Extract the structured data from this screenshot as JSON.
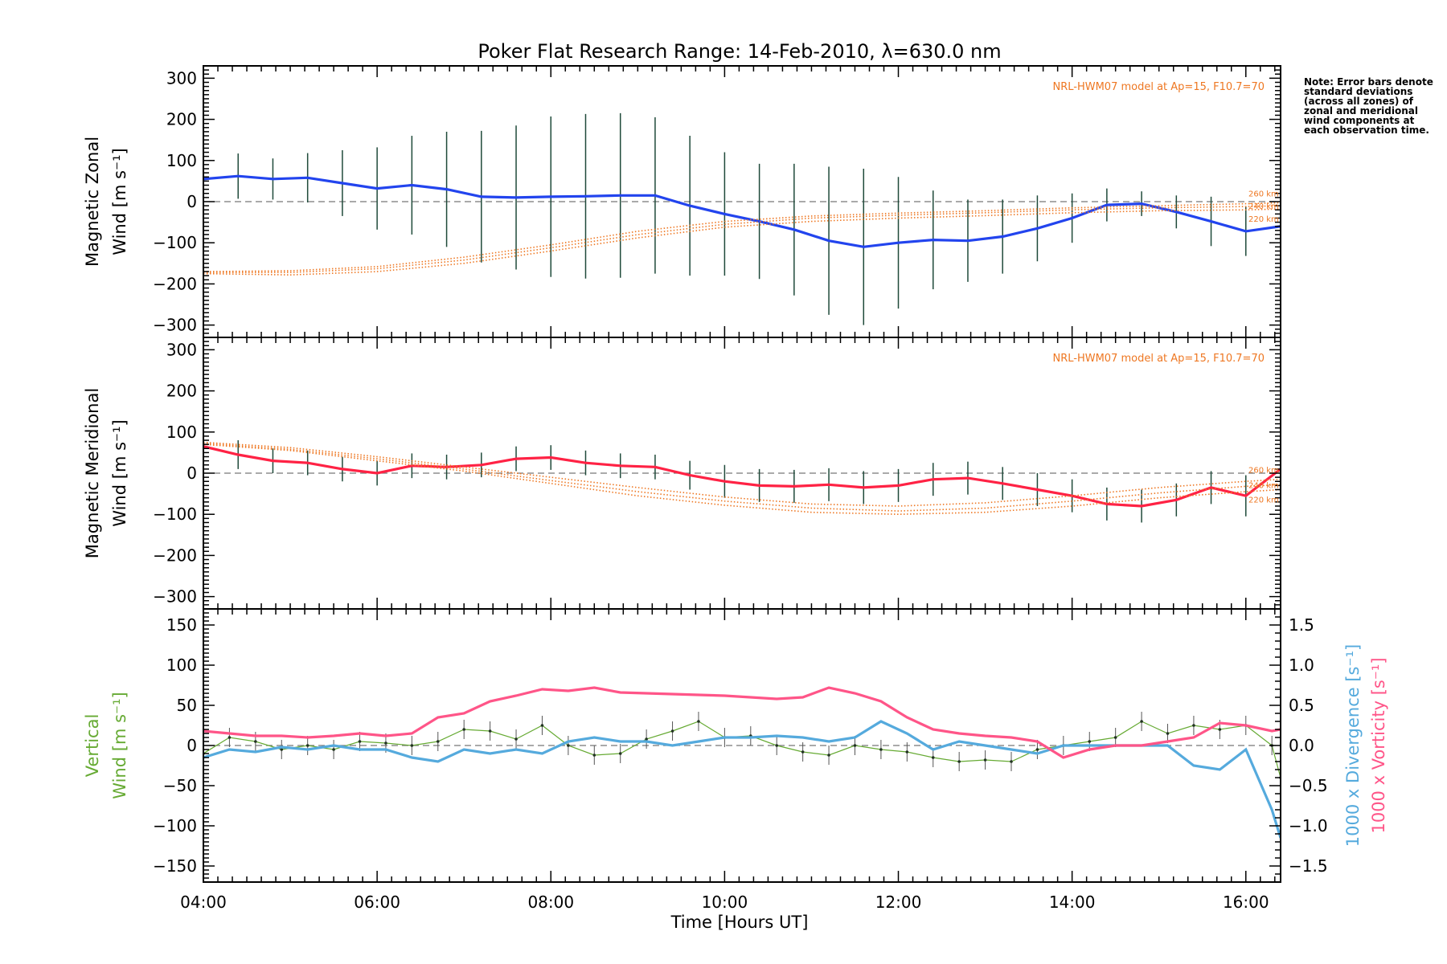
{
  "chart_data": {
    "type": "line",
    "title": "Poker Flat Research Range: 14-Feb-2010, λ=630.0 nm",
    "xlabel": "Time [Hours UT]",
    "x_ticks": [
      "04:00",
      "06:00",
      "08:00",
      "10:00",
      "12:00",
      "14:00",
      "16:00"
    ],
    "xlim_hours": [
      4.0,
      16.4
    ],
    "note": "Note: Error bars denote standard deviations (across all zones) of zonal and meridional wind components at each observation time.",
    "panels": [
      {
        "name": "zonal",
        "ylabel_line1": "Magnetic Zonal",
        "ylabel_line2": "Wind [m s⁻¹]",
        "ylim": [
          -330,
          330
        ],
        "y_ticks": [
          300,
          200,
          100,
          0,
          -100,
          -200,
          -300
        ],
        "model_label": "NRL-HWM07 model at Ap=15, F10.7=70",
        "altitude_labels": [
          "260 km",
          "240 km",
          "220 km"
        ],
        "series": [
          {
            "name": "Zonal wind",
            "color": "#2244ee",
            "x": [
              4.0,
              4.4,
              4.8,
              5.2,
              5.6,
              6.0,
              6.4,
              6.8,
              7.2,
              7.6,
              8.0,
              8.4,
              8.8,
              9.2,
              9.6,
              10.0,
              10.4,
              10.8,
              11.2,
              11.6,
              12.0,
              12.4,
              12.8,
              13.2,
              13.6,
              14.0,
              14.4,
              14.8,
              15.2,
              15.6,
              16.0,
              16.4
            ],
            "y": [
              55,
              62,
              55,
              58,
              45,
              32,
              40,
              30,
              12,
              10,
              12,
              13,
              15,
              15,
              -10,
              -30,
              -48,
              -68,
              -95,
              -110,
              -100,
              -93,
              -95,
              -85,
              -65,
              -40,
              -8,
              -5,
              -25,
              -48,
              -72,
              -60
            ],
            "err": [
              60,
              55,
              50,
              60,
              80,
              100,
              120,
              140,
              160,
              175,
              195,
              200,
              200,
              190,
              170,
              150,
              140,
              160,
              180,
              190,
              160,
              120,
              100,
              90,
              80,
              60,
              40,
              30,
              40,
              60,
              60,
              60
            ]
          },
          {
            "name": "HWM07 260 km",
            "color": "#ee7722",
            "x": [
              4.0,
              5.0,
              6.0,
              7.0,
              8.0,
              9.0,
              10.0,
              11.0,
              12.0,
              13.0,
              14.0,
              15.0,
              16.0,
              16.4
            ],
            "y": [
              -170,
              -168,
              -158,
              -135,
              -105,
              -72,
              -48,
              -35,
              -28,
              -22,
              -15,
              -10,
              -5,
              -3
            ]
          },
          {
            "name": "HWM07 240 km",
            "color": "#ee7722",
            "x": [
              4.0,
              5.0,
              6.0,
              7.0,
              8.0,
              9.0,
              10.0,
              11.0,
              12.0,
              13.0,
              14.0,
              15.0,
              16.0,
              16.4
            ],
            "y": [
              -172,
              -172,
              -163,
              -142,
              -112,
              -80,
              -55,
              -40,
              -33,
              -27,
              -20,
              -15,
              -12,
              -10
            ]
          },
          {
            "name": "HWM07 220 km",
            "color": "#ee7722",
            "x": [
              4.0,
              5.0,
              6.0,
              7.0,
              8.0,
              9.0,
              10.0,
              11.0,
              12.0,
              13.0,
              14.0,
              15.0,
              16.0,
              16.4
            ],
            "y": [
              -175,
              -178,
              -170,
              -150,
              -120,
              -88,
              -62,
              -48,
              -40,
              -34,
              -27,
              -22,
              -20,
              -18
            ]
          }
        ]
      },
      {
        "name": "meridional",
        "ylabel_line1": "Magnetic Meridional",
        "ylabel_line2": "Wind [m s⁻¹]",
        "ylim": [
          -330,
          330
        ],
        "y_ticks": [
          300,
          200,
          100,
          0,
          -100,
          -200,
          -300
        ],
        "model_label": "NRL-HWM07 model at Ap=15, F10.7=70",
        "altitude_labels": [
          "260 km",
          "240 km",
          "220 km"
        ],
        "series": [
          {
            "name": "Meridional wind",
            "color": "#ff2244",
            "x": [
              4.0,
              4.4,
              4.8,
              5.2,
              5.6,
              6.0,
              6.4,
              6.8,
              7.2,
              7.6,
              8.0,
              8.4,
              8.8,
              9.2,
              9.6,
              10.0,
              10.4,
              10.8,
              11.2,
              11.6,
              12.0,
              12.4,
              12.8,
              13.2,
              13.6,
              14.0,
              14.4,
              14.8,
              15.2,
              15.6,
              16.0,
              16.4
            ],
            "y": [
              65,
              45,
              30,
              25,
              10,
              0,
              18,
              15,
              20,
              35,
              38,
              25,
              18,
              15,
              -5,
              -20,
              -30,
              -32,
              -28,
              -35,
              -30,
              -15,
              -12,
              -25,
              -40,
              -55,
              -75,
              -80,
              -65,
              -35,
              -55,
              10
            ],
            "err": [
              40,
              35,
              30,
              30,
              30,
              30,
              30,
              30,
              30,
              30,
              30,
              30,
              30,
              30,
              35,
              40,
              40,
              40,
              40,
              40,
              40,
              40,
              40,
              40,
              40,
              40,
              40,
              40,
              40,
              40,
              50,
              60
            ]
          },
          {
            "name": "HWM07 260 km",
            "color": "#ee7722",
            "x": [
              4.0,
              5.0,
              6.0,
              7.0,
              8.0,
              9.0,
              10.0,
              11.0,
              12.0,
              13.0,
              14.0,
              15.0,
              16.0,
              16.4
            ],
            "y": [
              75,
              62,
              40,
              15,
              -10,
              -35,
              -58,
              -75,
              -80,
              -72,
              -55,
              -35,
              -20,
              -15
            ]
          },
          {
            "name": "HWM07 240 km",
            "color": "#ee7722",
            "x": [
              4.0,
              5.0,
              6.0,
              7.0,
              8.0,
              9.0,
              10.0,
              11.0,
              12.0,
              13.0,
              14.0,
              15.0,
              16.0,
              16.4
            ],
            "y": [
              72,
              58,
              35,
              10,
              -18,
              -45,
              -68,
              -85,
              -92,
              -85,
              -68,
              -48,
              -32,
              -28
            ]
          },
          {
            "name": "HWM07 220 km",
            "color": "#ee7722",
            "x": [
              4.0,
              5.0,
              6.0,
              7.0,
              8.0,
              9.0,
              10.0,
              11.0,
              12.0,
              13.0,
              14.0,
              15.0,
              16.0,
              16.4
            ],
            "y": [
              70,
              55,
              30,
              5,
              -25,
              -55,
              -78,
              -95,
              -100,
              -95,
              -80,
              -60,
              -45,
              -40
            ]
          }
        ]
      },
      {
        "name": "vertical",
        "ylabel_line1": "Vertical",
        "ylabel_line2": "Wind [m s⁻¹]",
        "ylim": [
          -170,
          170
        ],
        "y_ticks": [
          150,
          100,
          50,
          0,
          -50,
          -100,
          -150
        ],
        "right_axis": {
          "ylim": [
            -1.7,
            1.7
          ],
          "y_ticks": [
            1.5,
            1.0,
            0.5,
            0.0,
            -0.5,
            -1.0,
            -1.5
          ],
          "label_divergence": "1000 x Divergence [s⁻¹]",
          "label_vorticity": "1000 x Vorticity [s⁻¹]"
        },
        "series": [
          {
            "name": "Vertical wind",
            "color": "#66aa33",
            "axis": "left",
            "x": [
              4.0,
              4.3,
              4.6,
              4.9,
              5.2,
              5.5,
              5.8,
              6.1,
              6.4,
              6.7,
              7.0,
              7.3,
              7.6,
              7.9,
              8.2,
              8.5,
              8.8,
              9.1,
              9.4,
              9.7,
              10.0,
              10.3,
              10.6,
              10.9,
              11.2,
              11.5,
              11.8,
              12.1,
              12.4,
              12.7,
              13.0,
              13.3,
              13.6,
              13.9,
              14.2,
              14.5,
              14.8,
              15.1,
              15.4,
              15.7,
              16.0,
              16.3,
              16.4
            ],
            "y": [
              -10,
              10,
              5,
              -5,
              0,
              -5,
              5,
              3,
              0,
              5,
              20,
              18,
              8,
              25,
              0,
              -12,
              -10,
              8,
              18,
              30,
              10,
              12,
              0,
              -8,
              -12,
              0,
              -5,
              -8,
              -15,
              -20,
              -18,
              -20,
              -5,
              0,
              5,
              10,
              30,
              15,
              25,
              20,
              25,
              0,
              -40
            ]
          },
          {
            "name": "Divergence",
            "color": "#55aadd",
            "axis": "right",
            "x": [
              4.0,
              4.3,
              4.6,
              4.9,
              5.2,
              5.5,
              5.8,
              6.1,
              6.4,
              6.7,
              7.0,
              7.3,
              7.6,
              7.9,
              8.2,
              8.5,
              8.8,
              9.1,
              9.4,
              9.7,
              10.0,
              10.3,
              10.6,
              10.9,
              11.2,
              11.5,
              11.8,
              12.1,
              12.4,
              12.7,
              13.0,
              13.3,
              13.6,
              13.9,
              14.2,
              14.5,
              14.8,
              15.1,
              15.4,
              15.7,
              16.0,
              16.3,
              16.4
            ],
            "y": [
              -0.15,
              -0.05,
              -0.08,
              -0.02,
              -0.05,
              0.0,
              -0.05,
              -0.05,
              -0.15,
              -0.2,
              -0.05,
              -0.1,
              -0.05,
              -0.1,
              0.05,
              0.1,
              0.05,
              0.05,
              0.0,
              0.05,
              0.1,
              0.1,
              0.12,
              0.1,
              0.05,
              0.1,
              0.3,
              0.15,
              -0.05,
              0.05,
              0.0,
              -0.05,
              -0.1,
              0.0,
              0.0,
              0.0,
              0.0,
              0.0,
              -0.25,
              -0.3,
              -0.05,
              -0.8,
              -1.15
            ]
          },
          {
            "name": "Vorticity",
            "color": "#ff5588",
            "axis": "right",
            "x": [
              4.0,
              4.3,
              4.6,
              4.9,
              5.2,
              5.5,
              5.8,
              6.1,
              6.4,
              6.7,
              7.0,
              7.3,
              7.6,
              7.9,
              8.2,
              8.5,
              8.8,
              9.1,
              9.4,
              9.7,
              10.0,
              10.3,
              10.6,
              10.9,
              11.2,
              11.5,
              11.8,
              12.1,
              12.4,
              12.7,
              13.0,
              13.3,
              13.6,
              13.9,
              14.2,
              14.5,
              14.8,
              15.1,
              15.4,
              15.7,
              16.0,
              16.3,
              16.4
            ],
            "y": [
              0.18,
              0.15,
              0.12,
              0.12,
              0.1,
              0.12,
              0.15,
              0.12,
              0.15,
              0.35,
              0.4,
              0.55,
              0.62,
              0.7,
              0.68,
              0.72,
              0.66,
              0.65,
              0.64,
              0.63,
              0.62,
              0.6,
              0.58,
              0.6,
              0.72,
              0.65,
              0.55,
              0.35,
              0.2,
              0.15,
              0.12,
              0.1,
              0.05,
              -0.15,
              -0.05,
              0.0,
              0.0,
              0.05,
              0.1,
              0.28,
              0.25,
              0.18,
              0.2
            ]
          }
        ]
      }
    ]
  }
}
